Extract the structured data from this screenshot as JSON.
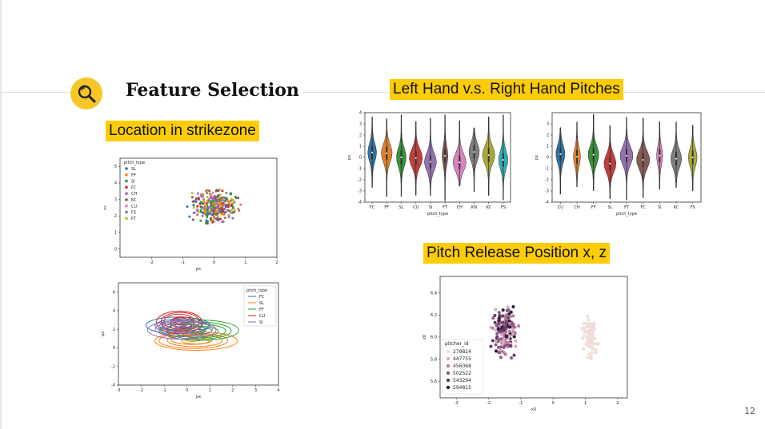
{
  "slide": {
    "title": "Feature Selection",
    "page_number": "12",
    "icon": "search-icon"
  },
  "labels": {
    "location": "Location in strikezone",
    "hand": "Left Hand v.s. Right Hand Pitches",
    "release": "Pitch Release Position x, z"
  },
  "colors": {
    "highlight": "#fccd06",
    "icon_circle": "#f6c627"
  },
  "chart_data": [
    {
      "type": "scatter",
      "xlabel": "px",
      "ylabel": "pz",
      "xlim": [
        -3,
        2
      ],
      "ylim": [
        -0.5,
        5.5
      ],
      "xticks": [
        "-2",
        "-1",
        "0",
        "1",
        "2"
      ],
      "yticks": [
        "0",
        "1",
        "2",
        "3",
        "4",
        "5"
      ],
      "legend_title": "pitch_type",
      "legend_position": "top-left",
      "series": [
        {
          "name": "SL",
          "color": "#1f77b4"
        },
        {
          "name": "FF",
          "color": "#ff7f0e"
        },
        {
          "name": "SI",
          "color": "#2ca02c"
        },
        {
          "name": "FC",
          "color": "#d62728"
        },
        {
          "name": "CH",
          "color": "#9467bd"
        },
        {
          "name": "KC",
          "color": "#8c564b"
        },
        {
          "name": "CU",
          "color": "#e377c2"
        },
        {
          "name": "FS",
          "color": "#7f7f7f"
        },
        {
          "name": "FT",
          "color": "#bcbd22"
        }
      ],
      "point_cloud": {
        "x_range": [
          -2.0,
          2.0
        ],
        "y_range": [
          0.0,
          5.0
        ],
        "count": 320
      }
    },
    {
      "type": "kde",
      "xlabel": "px",
      "ylabel": "pz",
      "xlim": [
        -3,
        4
      ],
      "ylim": [
        -4,
        7
      ],
      "xticks": [
        "-3",
        "-2",
        "-1",
        "0",
        "1",
        "2",
        "3",
        "4"
      ],
      "yticks": [
        "-4",
        "-2",
        "0",
        "2",
        "4",
        "6"
      ],
      "legend_title": "pitch_type",
      "legend_position": "top-right",
      "series": [
        {
          "name": "FC",
          "color": "#1f77b4"
        },
        {
          "name": "SL",
          "color": "#ff7f0e"
        },
        {
          "name": "FF",
          "color": "#2ca02c"
        },
        {
          "name": "CU",
          "color": "#d62728"
        },
        {
          "name": "SI",
          "color": "#9467bd"
        }
      ]
    },
    {
      "type": "violin",
      "xlabel": "pitch_type",
      "ylabel": "px",
      "ylim": [
        -4,
        4
      ],
      "yticks": [
        "-4",
        "-3",
        "-2",
        "-1",
        "0",
        "1",
        "2",
        "3",
        "4"
      ],
      "categories": [
        "FC",
        "FF",
        "SL",
        "CU",
        "SI",
        "FT",
        "CH",
        "KN",
        "KC",
        "FS"
      ],
      "colors": [
        "#3274a1",
        "#e1812c",
        "#3a923a",
        "#c03d3e",
        "#9372b2",
        "#845b53",
        "#d684bd",
        "#7f7f7f",
        "#a9aa35",
        "#2eadb8"
      ]
    },
    {
      "type": "violin",
      "xlabel": "pitch_type",
      "ylabel": "px",
      "ylim": [
        -4,
        4
      ],
      "yticks": [
        "-4",
        "-3",
        "-2",
        "-1",
        "0",
        "1",
        "2",
        "3"
      ],
      "categories": [
        "CU",
        "CH",
        "FF",
        "SL",
        "FT",
        "FC",
        "SI",
        "KC",
        "FS"
      ],
      "colors": [
        "#3274a1",
        "#e1812c",
        "#3a923a",
        "#c03d3e",
        "#9372b2",
        "#845b53",
        "#d684bd",
        "#7f7f7f",
        "#a9aa35"
      ]
    },
    {
      "type": "scatter",
      "xlabel": "x0",
      "ylabel": "z0",
      "xlim": [
        -3.5,
        2.3
      ],
      "ylim": [
        5.45,
        6.55
      ],
      "xticks": [
        "-3",
        "-2",
        "-1",
        "0",
        "1",
        "2"
      ],
      "yticks": [
        "5.6",
        "5.8",
        "6.0",
        "6.2",
        "6.4"
      ],
      "legend_title": "pitcher_id",
      "legend_position": "bottom-left",
      "series": [
        {
          "name": "279824",
          "color": "#f0dcd9"
        },
        {
          "name": "447755",
          "color": "#d9a9bb"
        },
        {
          "name": "456068",
          "color": "#b77c9e"
        },
        {
          "name": "502522",
          "color": "#8d5885"
        },
        {
          "name": "543294",
          "color": "#5f3a66"
        },
        {
          "name": "594815",
          "color": "#2d1e3e"
        }
      ],
      "clusters": [
        {
          "x_range": [
            -2.3,
            -0.6
          ],
          "y_range": [
            5.6,
            6.5
          ]
        },
        {
          "x_range": [
            0.7,
            1.6
          ],
          "y_range": [
            5.55,
            6.4
          ]
        }
      ]
    }
  ]
}
